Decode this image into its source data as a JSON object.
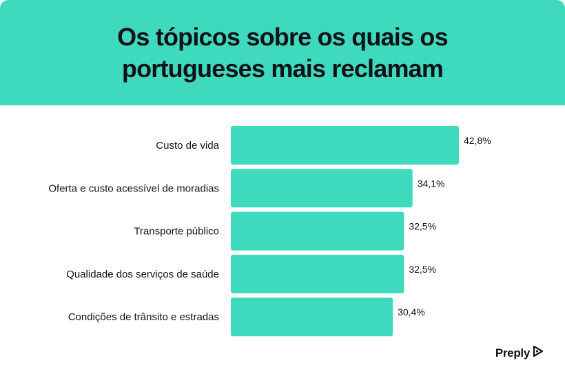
{
  "header": {
    "title_line1": "Os tópicos sobre os quais os",
    "title_line2": "portugueses mais reclamam"
  },
  "colors": {
    "accent": "#3fd9be",
    "text": "#121117",
    "background": "#ffffff"
  },
  "brand": {
    "name": "Preply",
    "icon": "preply-logo-icon"
  },
  "chart_data": {
    "type": "bar",
    "orientation": "horizontal",
    "title": "Os tópicos sobre os quais os portugueses mais reclamam",
    "categories": [
      "Custo de vida",
      "Oferta e custo acessível de moradias",
      "Transporte público",
      "Qualidade dos serviços de saúde",
      "Condições de trânsito e estradas"
    ],
    "values": [
      42.8,
      34.1,
      32.5,
      32.5,
      30.4
    ],
    "value_labels": [
      "42,8%",
      "34,1%",
      "32,5%",
      "32,5%",
      "30,4%"
    ],
    "xlim": [
      0,
      42.8
    ],
    "grid": false,
    "legend": "none"
  }
}
